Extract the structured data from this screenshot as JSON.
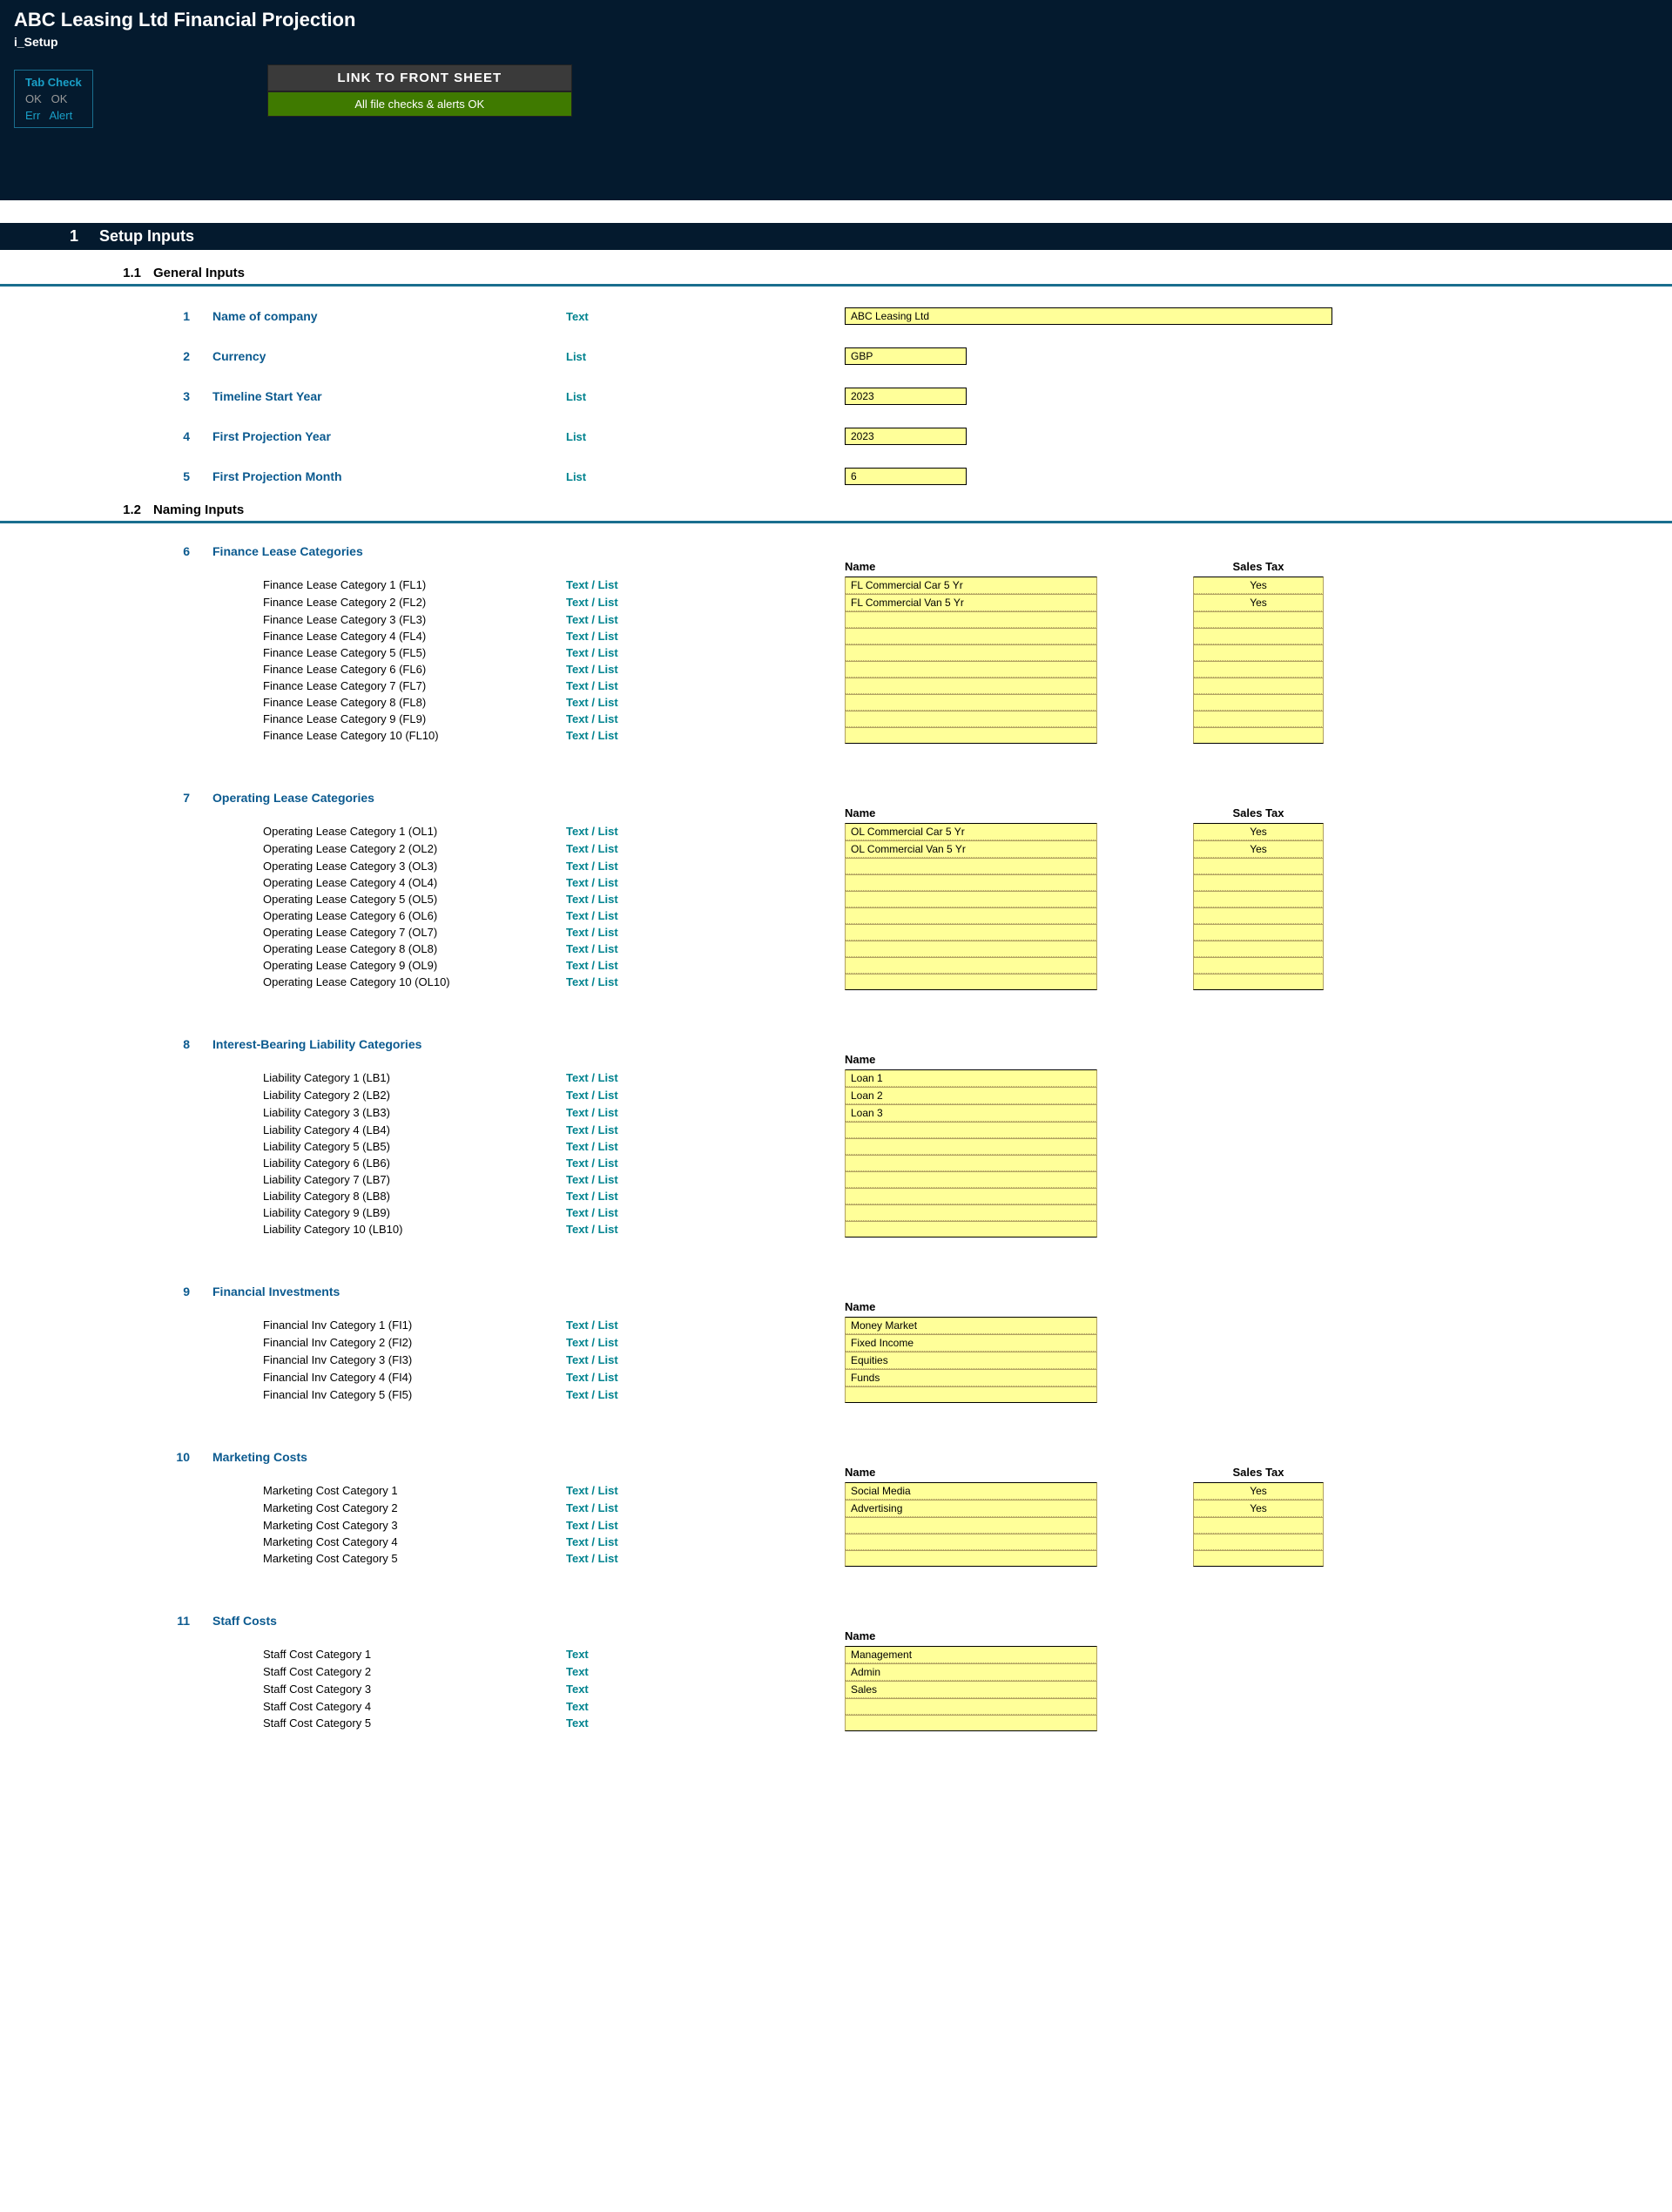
{
  "header": {
    "title": "ABC Leasing Ltd Financial Projection",
    "subtitle": "i_Setup",
    "tab_check": {
      "title": "Tab Check",
      "row1a": "OK",
      "row1b": "OK",
      "row2a": "Err",
      "row2b": "Alert"
    },
    "link_button": "LINK TO FRONT SHEET",
    "ok_button": "All file checks & alerts OK"
  },
  "section1": {
    "num": "1",
    "label": "Setup Inputs"
  },
  "ss11": {
    "num": "1.1",
    "label": "General Inputs"
  },
  "general": [
    {
      "num": "1",
      "label": "Name of company",
      "type": "Text",
      "value": "ABC Leasing Ltd",
      "wide": true
    },
    {
      "num": "2",
      "label": "Currency",
      "type": "List",
      "value": "GBP",
      "wide": false
    },
    {
      "num": "3",
      "label": "Timeline Start Year",
      "type": "List",
      "value": "2023",
      "wide": false
    },
    {
      "num": "4",
      "label": "First Projection Year",
      "type": "List",
      "value": "2023",
      "wide": false
    },
    {
      "num": "5",
      "label": "First Projection Month",
      "type": "List",
      "value": "6",
      "wide": false
    }
  ],
  "ss12": {
    "num": "1.2",
    "label": "Naming Inputs"
  },
  "col_name": "Name",
  "col_tax": "Sales Tax",
  "textlist": "Text / List",
  "text": "Text",
  "groups": [
    {
      "num": "6",
      "label": "Finance Lease Categories",
      "type_label": "Text / List",
      "has_tax": true,
      "rows": [
        {
          "label": "Finance Lease Category 1 (FL1)",
          "name": "FL Commercial Car 5 Yr",
          "tax": "Yes"
        },
        {
          "label": "Finance Lease Category 2 (FL2)",
          "name": "FL Commercial Van 5 Yr",
          "tax": "Yes"
        },
        {
          "label": "Finance Lease Category 3 (FL3)",
          "name": "",
          "tax": ""
        },
        {
          "label": "Finance Lease Category 4 (FL4)",
          "name": "",
          "tax": ""
        },
        {
          "label": "Finance Lease Category 5 (FL5)",
          "name": "",
          "tax": ""
        },
        {
          "label": "Finance Lease Category 6 (FL6)",
          "name": "",
          "tax": ""
        },
        {
          "label": "Finance Lease Category 7 (FL7)",
          "name": "",
          "tax": ""
        },
        {
          "label": "Finance Lease Category 8 (FL8)",
          "name": "",
          "tax": ""
        },
        {
          "label": "Finance Lease Category 9 (FL9)",
          "name": "",
          "tax": ""
        },
        {
          "label": "Finance Lease Category 10 (FL10)",
          "name": "",
          "tax": ""
        }
      ]
    },
    {
      "num": "7",
      "label": "Operating Lease Categories",
      "type_label": "Text / List",
      "has_tax": true,
      "rows": [
        {
          "label": "Operating Lease Category 1 (OL1)",
          "name": "OL Commercial Car 5 Yr",
          "tax": "Yes"
        },
        {
          "label": "Operating Lease Category 2 (OL2)",
          "name": "OL Commercial Van 5 Yr",
          "tax": "Yes"
        },
        {
          "label": "Operating Lease Category 3 (OL3)",
          "name": "",
          "tax": ""
        },
        {
          "label": "Operating Lease Category 4 (OL4)",
          "name": "",
          "tax": ""
        },
        {
          "label": "Operating Lease Category 5 (OL5)",
          "name": "",
          "tax": ""
        },
        {
          "label": "Operating Lease Category 6 (OL6)",
          "name": "",
          "tax": ""
        },
        {
          "label": "Operating Lease Category 7 (OL7)",
          "name": "",
          "tax": ""
        },
        {
          "label": "Operating Lease Category 8 (OL8)",
          "name": "",
          "tax": ""
        },
        {
          "label": "Operating Lease Category 9 (OL9)",
          "name": "",
          "tax": ""
        },
        {
          "label": "Operating Lease Category 10 (OL10)",
          "name": "",
          "tax": ""
        }
      ]
    },
    {
      "num": "8",
      "label": "Interest-Bearing Liability Categories",
      "type_label": "Text / List",
      "has_tax": false,
      "rows": [
        {
          "label": "Liability Category 1 (LB1)",
          "name": "Loan 1"
        },
        {
          "label": "Liability Category 2 (LB2)",
          "name": "Loan 2"
        },
        {
          "label": "Liability Category 3 (LB3)",
          "name": "Loan 3"
        },
        {
          "label": "Liability Category 4 (LB4)",
          "name": ""
        },
        {
          "label": "Liability Category 5 (LB5)",
          "name": ""
        },
        {
          "label": "Liability Category 6 (LB6)",
          "name": ""
        },
        {
          "label": "Liability Category 7 (LB7)",
          "name": ""
        },
        {
          "label": "Liability Category 8 (LB8)",
          "name": ""
        },
        {
          "label": "Liability Category 9 (LB9)",
          "name": ""
        },
        {
          "label": "Liability Category 10 (LB10)",
          "name": ""
        }
      ]
    },
    {
      "num": "9",
      "label": "Financial Investments",
      "type_label": "Text / List",
      "has_tax": false,
      "rows": [
        {
          "label": "Financial Inv Category 1 (FI1)",
          "name": "Money Market"
        },
        {
          "label": "Financial Inv Category 2 (FI2)",
          "name": "Fixed Income"
        },
        {
          "label": "Financial Inv Category 3 (FI3)",
          "name": "Equities"
        },
        {
          "label": "Financial Inv Category 4 (FI4)",
          "name": "Funds"
        },
        {
          "label": "Financial Inv Category 5 (FI5)",
          "name": ""
        }
      ]
    },
    {
      "num": "10",
      "label": "Marketing Costs",
      "type_label": "Text / List",
      "has_tax": true,
      "rows": [
        {
          "label": "Marketing Cost Category 1",
          "name": "Social Media",
          "tax": "Yes"
        },
        {
          "label": "Marketing Cost Category 2",
          "name": "Advertising",
          "tax": "Yes"
        },
        {
          "label": "Marketing Cost Category 3",
          "name": "",
          "tax": ""
        },
        {
          "label": "Marketing Cost Category 4",
          "name": "",
          "tax": ""
        },
        {
          "label": "Marketing Cost Category 5",
          "name": "",
          "tax": ""
        }
      ]
    },
    {
      "num": "11",
      "label": "Staff Costs",
      "type_label": "Text",
      "has_tax": false,
      "rows": [
        {
          "label": "Staff Cost Category 1",
          "name": "Management"
        },
        {
          "label": "Staff Cost Category 2",
          "name": "Admin"
        },
        {
          "label": "Staff Cost Category 3",
          "name": "Sales"
        },
        {
          "label": "Staff Cost Category 4",
          "name": ""
        },
        {
          "label": "Staff Cost Category 5",
          "name": ""
        }
      ]
    }
  ]
}
